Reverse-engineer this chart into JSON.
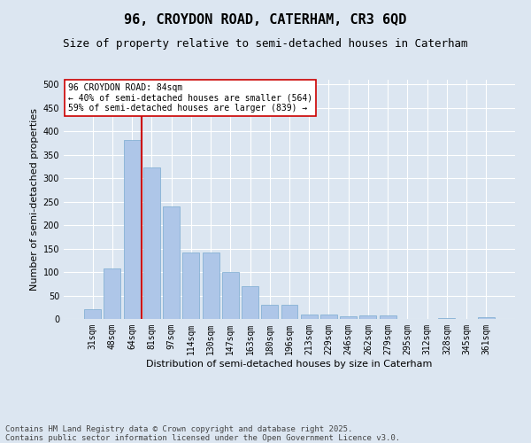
{
  "title_line1": "96, CROYDON ROAD, CATERHAM, CR3 6QD",
  "title_line2": "Size of property relative to semi-detached houses in Caterham",
  "xlabel": "Distribution of semi-detached houses by size in Caterham",
  "ylabel": "Number of semi-detached properties",
  "categories": [
    "31sqm",
    "48sqm",
    "64sqm",
    "81sqm",
    "97sqm",
    "114sqm",
    "130sqm",
    "147sqm",
    "163sqm",
    "180sqm",
    "196sqm",
    "213sqm",
    "229sqm",
    "246sqm",
    "262sqm",
    "279sqm",
    "295sqm",
    "312sqm",
    "328sqm",
    "345sqm",
    "361sqm"
  ],
  "values": [
    20,
    107,
    381,
    323,
    239,
    141,
    141,
    101,
    70,
    30,
    30,
    10,
    10,
    5,
    7,
    7,
    0,
    0,
    2,
    0,
    3
  ],
  "bar_color": "#aec6e8",
  "bar_edge_color": "#7aaad0",
  "vline_color": "#cc0000",
  "annotation_title": "96 CROYDON ROAD: 84sqm",
  "annotation_line1": "← 40% of semi-detached houses are smaller (564)",
  "annotation_line2": "59% of semi-detached houses are larger (839) →",
  "ylim": [
    0,
    510
  ],
  "yticks": [
    0,
    50,
    100,
    150,
    200,
    250,
    300,
    350,
    400,
    450,
    500
  ],
  "footer": "Contains HM Land Registry data © Crown copyright and database right 2025.\nContains public sector information licensed under the Open Government Licence v3.0.",
  "bg_color": "#dce6f1",
  "grid_color": "#ffffff",
  "title_fontsize": 11,
  "subtitle_fontsize": 9,
  "axis_label_fontsize": 8,
  "tick_fontsize": 7,
  "annotation_fontsize": 7,
  "footer_fontsize": 6.5
}
